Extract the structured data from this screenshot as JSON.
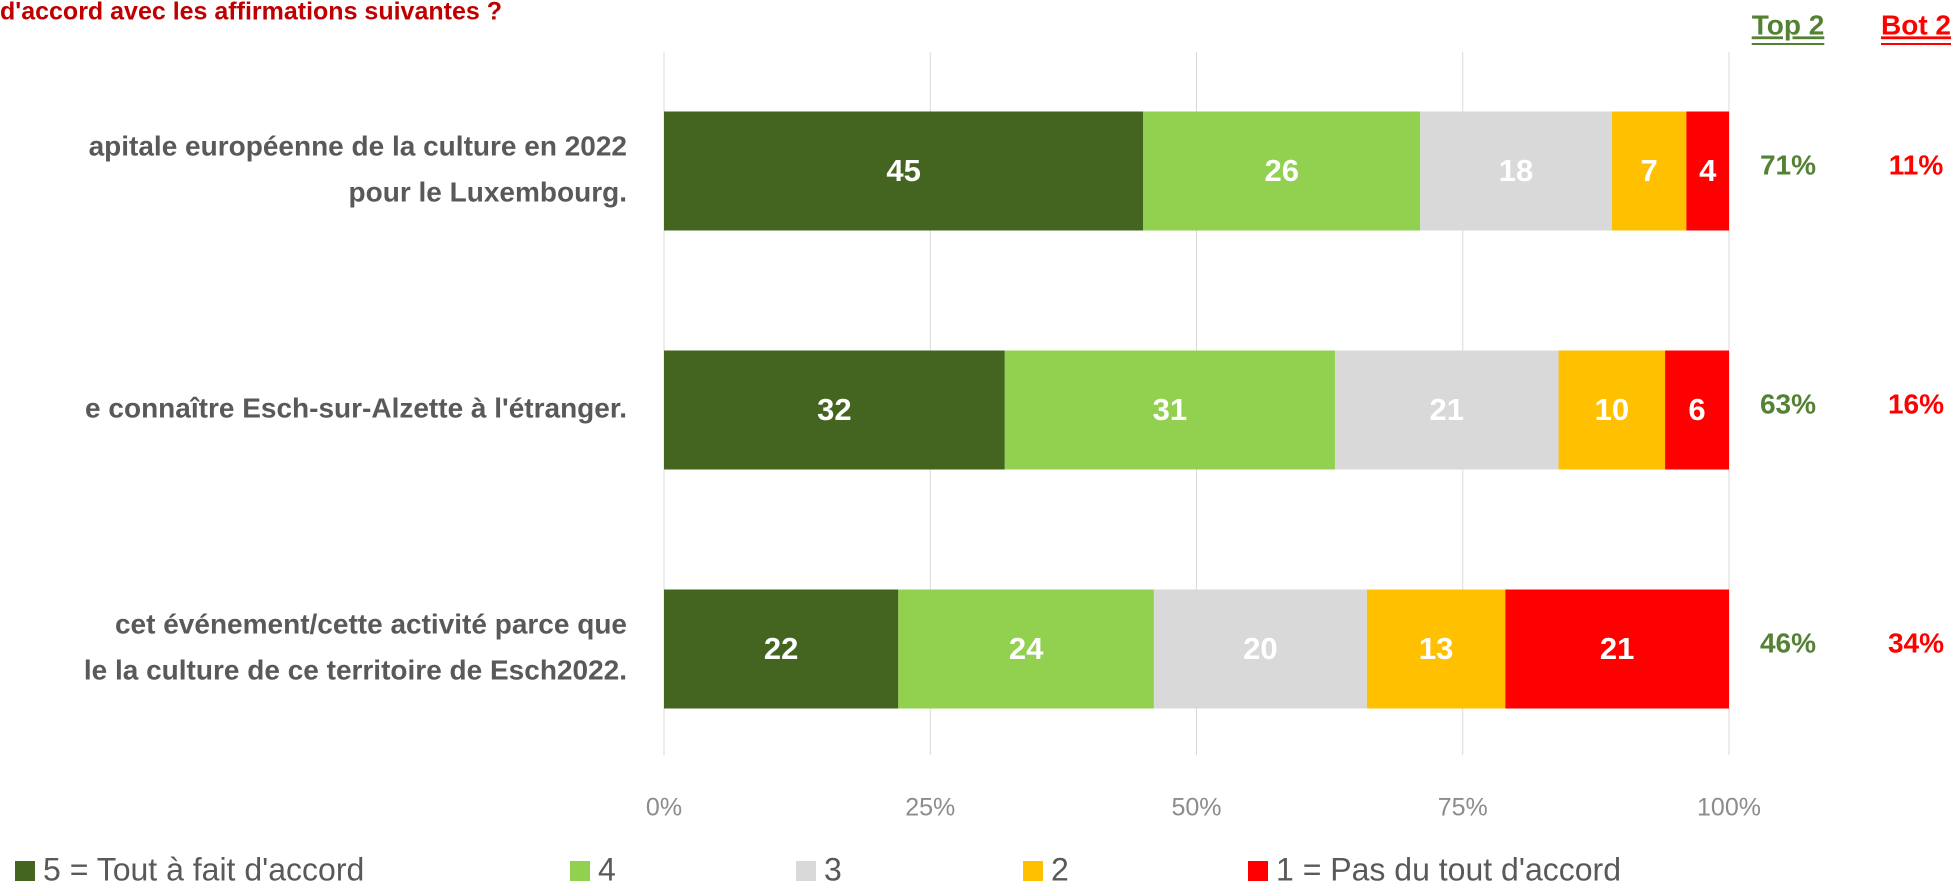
{
  "chart_data": {
    "type": "stacked_barh",
    "title": "d'accord avec les affirmations suivantes ?",
    "categories": [
      [
        "apitale européenne de la culture en 2022",
        " pour le Luxembourg."
      ],
      [
        "e connaître Esch-sur-Alzette à l'étranger."
      ],
      [
        "cet événement/cette activité parce que",
        "le la culture de ce territoire de Esch2022."
      ]
    ],
    "series": [
      {
        "name": "5 = Tout à fait d'accord",
        "color": "#43651f",
        "values": [
          45,
          32,
          22
        ]
      },
      {
        "name": "4",
        "color": "#92d050",
        "values": [
          26,
          31,
          24
        ]
      },
      {
        "name": "3",
        "color": "#d9d9d9",
        "values": [
          18,
          21,
          20
        ]
      },
      {
        "name": "2",
        "color": "#ffc000",
        "values": [
          7,
          10,
          13
        ]
      },
      {
        "name": "1 = Pas du tout d'accord",
        "color": "#ff0000",
        "values": [
          4,
          6,
          21
        ]
      }
    ],
    "xlim": [
      0,
      100
    ],
    "xticks": [
      {
        "value": 0,
        "label": "0%"
      },
      {
        "value": 25,
        "label": "25%"
      },
      {
        "value": 50,
        "label": "50%"
      },
      {
        "value": 75,
        "label": "75%"
      },
      {
        "value": 100,
        "label": "100%"
      }
    ],
    "grid": true,
    "top2": {
      "header": "Top 2",
      "color": "#548235",
      "labels": [
        "71%",
        "63%",
        "46%"
      ]
    },
    "bot2": {
      "header": "Bot 2",
      "color": "#ff0000",
      "labels": [
        "11%",
        "16%",
        "34%"
      ]
    }
  }
}
